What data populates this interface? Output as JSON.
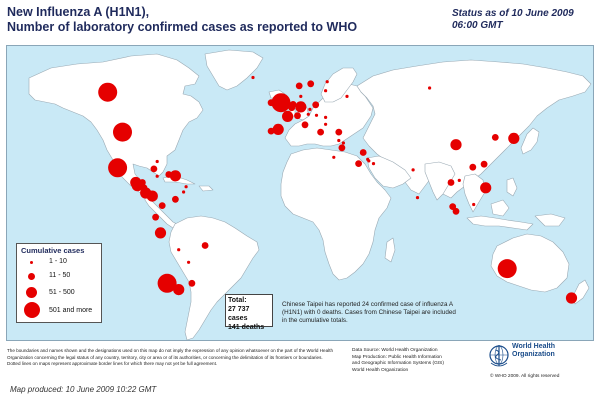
{
  "title_line1": "New Influenza A (H1N1),",
  "title_line2": "Number of  laboratory confirmed cases as reported to WHO",
  "status_line1": "Status as of 10 June 2009",
  "status_line2": "06:00 GMT",
  "colors": {
    "ocean": "#c9e9f6",
    "land": "#ffffff",
    "border": "#9aa9b3",
    "marker": "#e50000",
    "text": "#1f2a5c"
  },
  "legend": {
    "title": "Cumulative cases",
    "items": [
      {
        "label": "1 - 10",
        "size_class": "xs"
      },
      {
        "label": "11 - 50",
        "size_class": "s"
      },
      {
        "label": "51 - 500",
        "size_class": "m"
      },
      {
        "label": "501 and more",
        "size_class": "l"
      }
    ]
  },
  "total": {
    "label": "Total:",
    "cases": "27 737 cases",
    "deaths": "141 deaths"
  },
  "taipei_note": "Chinese Taipei has reported 24 confirmed case of influenza A (H1N1) with 0 deaths. Cases from Chinese Taipei are included in the cumulative totals.",
  "disclaimer": "The boundaries and names shown and the designations used on this map do not imply the expression of any opinion whatsoever on the part of the World Health Organization concerning the legal status of any country, territory, city or area or of its authorities, or concerning the delimitation of its frontiers or boundaries. Dotted lines on maps represent approximate border lines for which there may not yet be full agreement.",
  "source_lines": [
    "Data Source: World Health Organization",
    "Map Production: Public Health Information",
    "and Geographic Information Systems (GIS)",
    "World Health Organization"
  ],
  "who_name_line1": "World Health",
  "who_name_line2": "Organization",
  "copyright": "© WHO 2009. All rights reserved",
  "produced": "Map produced: 10 June 2009 10:22 GMT",
  "markers": [
    {
      "region": "Canada",
      "size_class": "l",
      "lon": -107,
      "lat": 58
    },
    {
      "region": "United States",
      "size_class": "l",
      "lon": -98,
      "lat": 39
    },
    {
      "region": "Mexico",
      "size_class": "l",
      "lon": -101,
      "lat": 22
    },
    {
      "region": "Guatemala",
      "size_class": "m",
      "lon": -90,
      "lat": 15
    },
    {
      "region": "El Salvador",
      "size_class": "m",
      "lon": -89,
      "lat": 13.5
    },
    {
      "region": "Honduras",
      "size_class": "s",
      "lon": -86,
      "lat": 15
    },
    {
      "region": "Nicaragua",
      "size_class": "s",
      "lon": -85,
      "lat": 12.5
    },
    {
      "region": "Costa Rica",
      "size_class": "m",
      "lon": -84,
      "lat": 10
    },
    {
      "region": "Panama",
      "size_class": "m",
      "lon": -80,
      "lat": 8.5
    },
    {
      "region": "Cuba",
      "size_class": "s",
      "lon": -79,
      "lat": 21.5
    },
    {
      "region": "Jamaica",
      "size_class": "xs",
      "lon": -77,
      "lat": 18
    },
    {
      "region": "Dominican Republic",
      "size_class": "s",
      "lon": -70,
      "lat": 18.8
    },
    {
      "region": "Puerto Rico",
      "size_class": "m",
      "lon": -66,
      "lat": 18.2
    },
    {
      "region": "Bahamas",
      "size_class": "xs",
      "lon": -77,
      "lat": 25
    },
    {
      "region": "Barbados",
      "size_class": "xs",
      "lon": -59.5,
      "lat": 13
    },
    {
      "region": "Trinidad and Tobago",
      "size_class": "xs",
      "lon": -61,
      "lat": 10.5
    },
    {
      "region": "Colombia",
      "size_class": "s",
      "lon": -74,
      "lat": 4
    },
    {
      "region": "Venezuela",
      "size_class": "s",
      "lon": -66,
      "lat": 7
    },
    {
      "region": "Ecuador",
      "size_class": "s",
      "lon": -78,
      "lat": -1.5
    },
    {
      "region": "Peru",
      "size_class": "m",
      "lon": -75,
      "lat": -9
    },
    {
      "region": "Brazil",
      "size_class": "s",
      "lon": -48,
      "lat": -15
    },
    {
      "region": "Bolivia",
      "size_class": "xs",
      "lon": -64,
      "lat": -17
    },
    {
      "region": "Paraguay",
      "size_class": "xs",
      "lon": -58,
      "lat": -23
    },
    {
      "region": "Uruguay",
      "size_class": "s",
      "lon": -56,
      "lat": -33
    },
    {
      "region": "Argentina",
      "size_class": "m",
      "lon": -64,
      "lat": -36
    },
    {
      "region": "Chile",
      "size_class": "l",
      "lon": -71,
      "lat": -33
    },
    {
      "region": "Iceland",
      "size_class": "xs",
      "lon": -19,
      "lat": 65
    },
    {
      "region": "Norway",
      "size_class": "s",
      "lon": 9,
      "lat": 61
    },
    {
      "region": "Sweden",
      "size_class": "s",
      "lon": 16,
      "lat": 62
    },
    {
      "region": "Finland",
      "size_class": "xs",
      "lon": 26,
      "lat": 63
    },
    {
      "region": "Estonia",
      "size_class": "xs",
      "lon": 25,
      "lat": 58.7
    },
    {
      "region": "Denmark",
      "size_class": "xs",
      "lon": 10,
      "lat": 56
    },
    {
      "region": "Ireland",
      "size_class": "s",
      "lon": -8,
      "lat": 53
    },
    {
      "region": "United Kingdom",
      "size_class": "l",
      "lon": -2,
      "lat": 53
    },
    {
      "region": "Netherlands",
      "size_class": "s",
      "lon": 5.3,
      "lat": 52.2
    },
    {
      "region": "Belgium",
      "size_class": "s",
      "lon": 4.5,
      "lat": 50.6
    },
    {
      "region": "Germany",
      "size_class": "m",
      "lon": 10,
      "lat": 51
    },
    {
      "region": "Poland",
      "size_class": "s",
      "lon": 19,
      "lat": 52
    },
    {
      "region": "France",
      "size_class": "m",
      "lon": 2,
      "lat": 46.5
    },
    {
      "region": "Switzerland",
      "size_class": "s",
      "lon": 8,
      "lat": 46.8
    },
    {
      "region": "Austria",
      "size_class": "xs",
      "lon": 14.5,
      "lat": 47.5
    },
    {
      "region": "Czech Republic",
      "size_class": "xs",
      "lon": 15.5,
      "lat": 49.8
    },
    {
      "region": "Hungary",
      "size_class": "xs",
      "lon": 19.5,
      "lat": 47
    },
    {
      "region": "Romania",
      "size_class": "xs",
      "lon": 25,
      "lat": 46
    },
    {
      "region": "Bulgaria",
      "size_class": "xs",
      "lon": 25,
      "lat": 42.7
    },
    {
      "region": "Portugal",
      "size_class": "s",
      "lon": -8,
      "lat": 39.5
    },
    {
      "region": "Spain",
      "size_class": "m",
      "lon": -3.7,
      "lat": 40.3
    },
    {
      "region": "Italy",
      "size_class": "s",
      "lon": 12.5,
      "lat": 42.5
    },
    {
      "region": "Greece",
      "size_class": "s",
      "lon": 22,
      "lat": 39
    },
    {
      "region": "Cyprus",
      "size_class": "xs",
      "lon": 33,
      "lat": 35
    },
    {
      "region": "Turkey",
      "size_class": "s",
      "lon": 33,
      "lat": 39
    },
    {
      "region": "Russia",
      "size_class": "xs",
      "lon": 38,
      "lat": 56
    },
    {
      "region": "Russia East",
      "size_class": "xs",
      "lon": 88,
      "lat": 60
    },
    {
      "region": "Lebanon",
      "size_class": "xs",
      "lon": 35.8,
      "lat": 33.8
    },
    {
      "region": "Israel",
      "size_class": "s",
      "lon": 34.9,
      "lat": 31.5
    },
    {
      "region": "Egypt",
      "size_class": "xs",
      "lon": 30,
      "lat": 27
    },
    {
      "region": "Saudi Arabia",
      "size_class": "s",
      "lon": 45,
      "lat": 24
    },
    {
      "region": "Kuwait",
      "size_class": "s",
      "lon": 47.8,
      "lat": 29.3
    },
    {
      "region": "Bahrain",
      "size_class": "xs",
      "lon": 50.5,
      "lat": 26
    },
    {
      "region": "Qatar",
      "size_class": "xs",
      "lon": 51.2,
      "lat": 25.3
    },
    {
      "region": "United Arab Emirates",
      "size_class": "xs",
      "lon": 54,
      "lat": 24
    },
    {
      "region": "India",
      "size_class": "xs",
      "lon": 78,
      "lat": 21
    },
    {
      "region": "Sri Lanka",
      "size_class": "xs",
      "lon": 80.7,
      "lat": 7.8
    },
    {
      "region": "China",
      "size_class": "m",
      "lon": 104,
      "lat": 33
    },
    {
      "region": "Hong Kong",
      "size_class": "s",
      "lon": 114.2,
      "lat": 22.3
    },
    {
      "region": "Chinese Taipei",
      "size_class": "s",
      "lon": 121,
      "lat": 23.7
    },
    {
      "region": "Republic of Korea",
      "size_class": "s",
      "lon": 127.8,
      "lat": 36.5
    },
    {
      "region": "Japan",
      "size_class": "m",
      "lon": 139,
      "lat": 36
    },
    {
      "region": "Thailand",
      "size_class": "s",
      "lon": 101,
      "lat": 15
    },
    {
      "region": "Viet Nam",
      "size_class": "xs",
      "lon": 106,
      "lat": 16
    },
    {
      "region": "Philippines",
      "size_class": "m",
      "lon": 122,
      "lat": 12.5
    },
    {
      "region": "Malaysia",
      "size_class": "s",
      "lon": 102,
      "lat": 3.5
    },
    {
      "region": "Singapore",
      "size_class": "s",
      "lon": 104,
      "lat": 1.3
    },
    {
      "region": "Brunei",
      "size_class": "xs",
      "lon": 114.7,
      "lat": 4.5
    },
    {
      "region": "Australia",
      "size_class": "l",
      "lon": 135,
      "lat": -26
    },
    {
      "region": "New Zealand",
      "size_class": "m",
      "lon": 174,
      "lat": -40
    }
  ]
}
